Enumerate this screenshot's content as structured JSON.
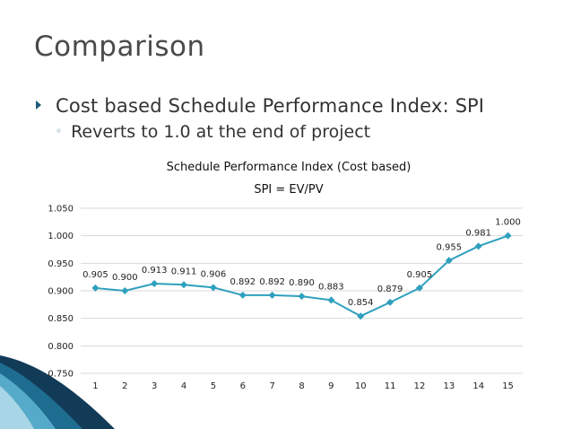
{
  "slide": {
    "title": "Comparison",
    "bullet_main": "Cost based Schedule Performance Index: ",
    "bullet_emph": "SPI",
    "bullet_sub": "Reverts to 1.0 at the end of project",
    "sub_marker": "◦"
  },
  "colors": {
    "series": "#2fa0be",
    "accent": "#1b5a7a",
    "grid": "#d9d9d9"
  },
  "chart_data": {
    "type": "line",
    "title": "Schedule Performance Index (Cost based)",
    "subtitle": "SPI = EV/PV",
    "xlabel": "",
    "ylabel": "",
    "categories": [
      "1",
      "2",
      "3",
      "4",
      "5",
      "6",
      "7",
      "8",
      "9",
      "10",
      "11",
      "12",
      "13",
      "14",
      "15"
    ],
    "values": [
      0.905,
      0.9,
      0.913,
      0.911,
      0.906,
      0.892,
      0.892,
      0.89,
      0.883,
      0.854,
      0.879,
      0.905,
      0.955,
      0.981,
      1.0
    ],
    "value_labels": [
      "0.905",
      "0.900",
      "0.913",
      "0.911",
      "0.906",
      "0.892",
      "0.892",
      "0.890",
      "0.883",
      "0.854",
      "0.879",
      "0.905",
      "0.955",
      "0.981",
      "1.000"
    ],
    "yticks": [
      "0.750",
      "0.800",
      "0.850",
      "0.900",
      "0.950",
      "1.000",
      "1.050"
    ],
    "ylim": [
      0.75,
      1.05
    ],
    "grid": true,
    "marker": "diamond",
    "legend": "none"
  }
}
